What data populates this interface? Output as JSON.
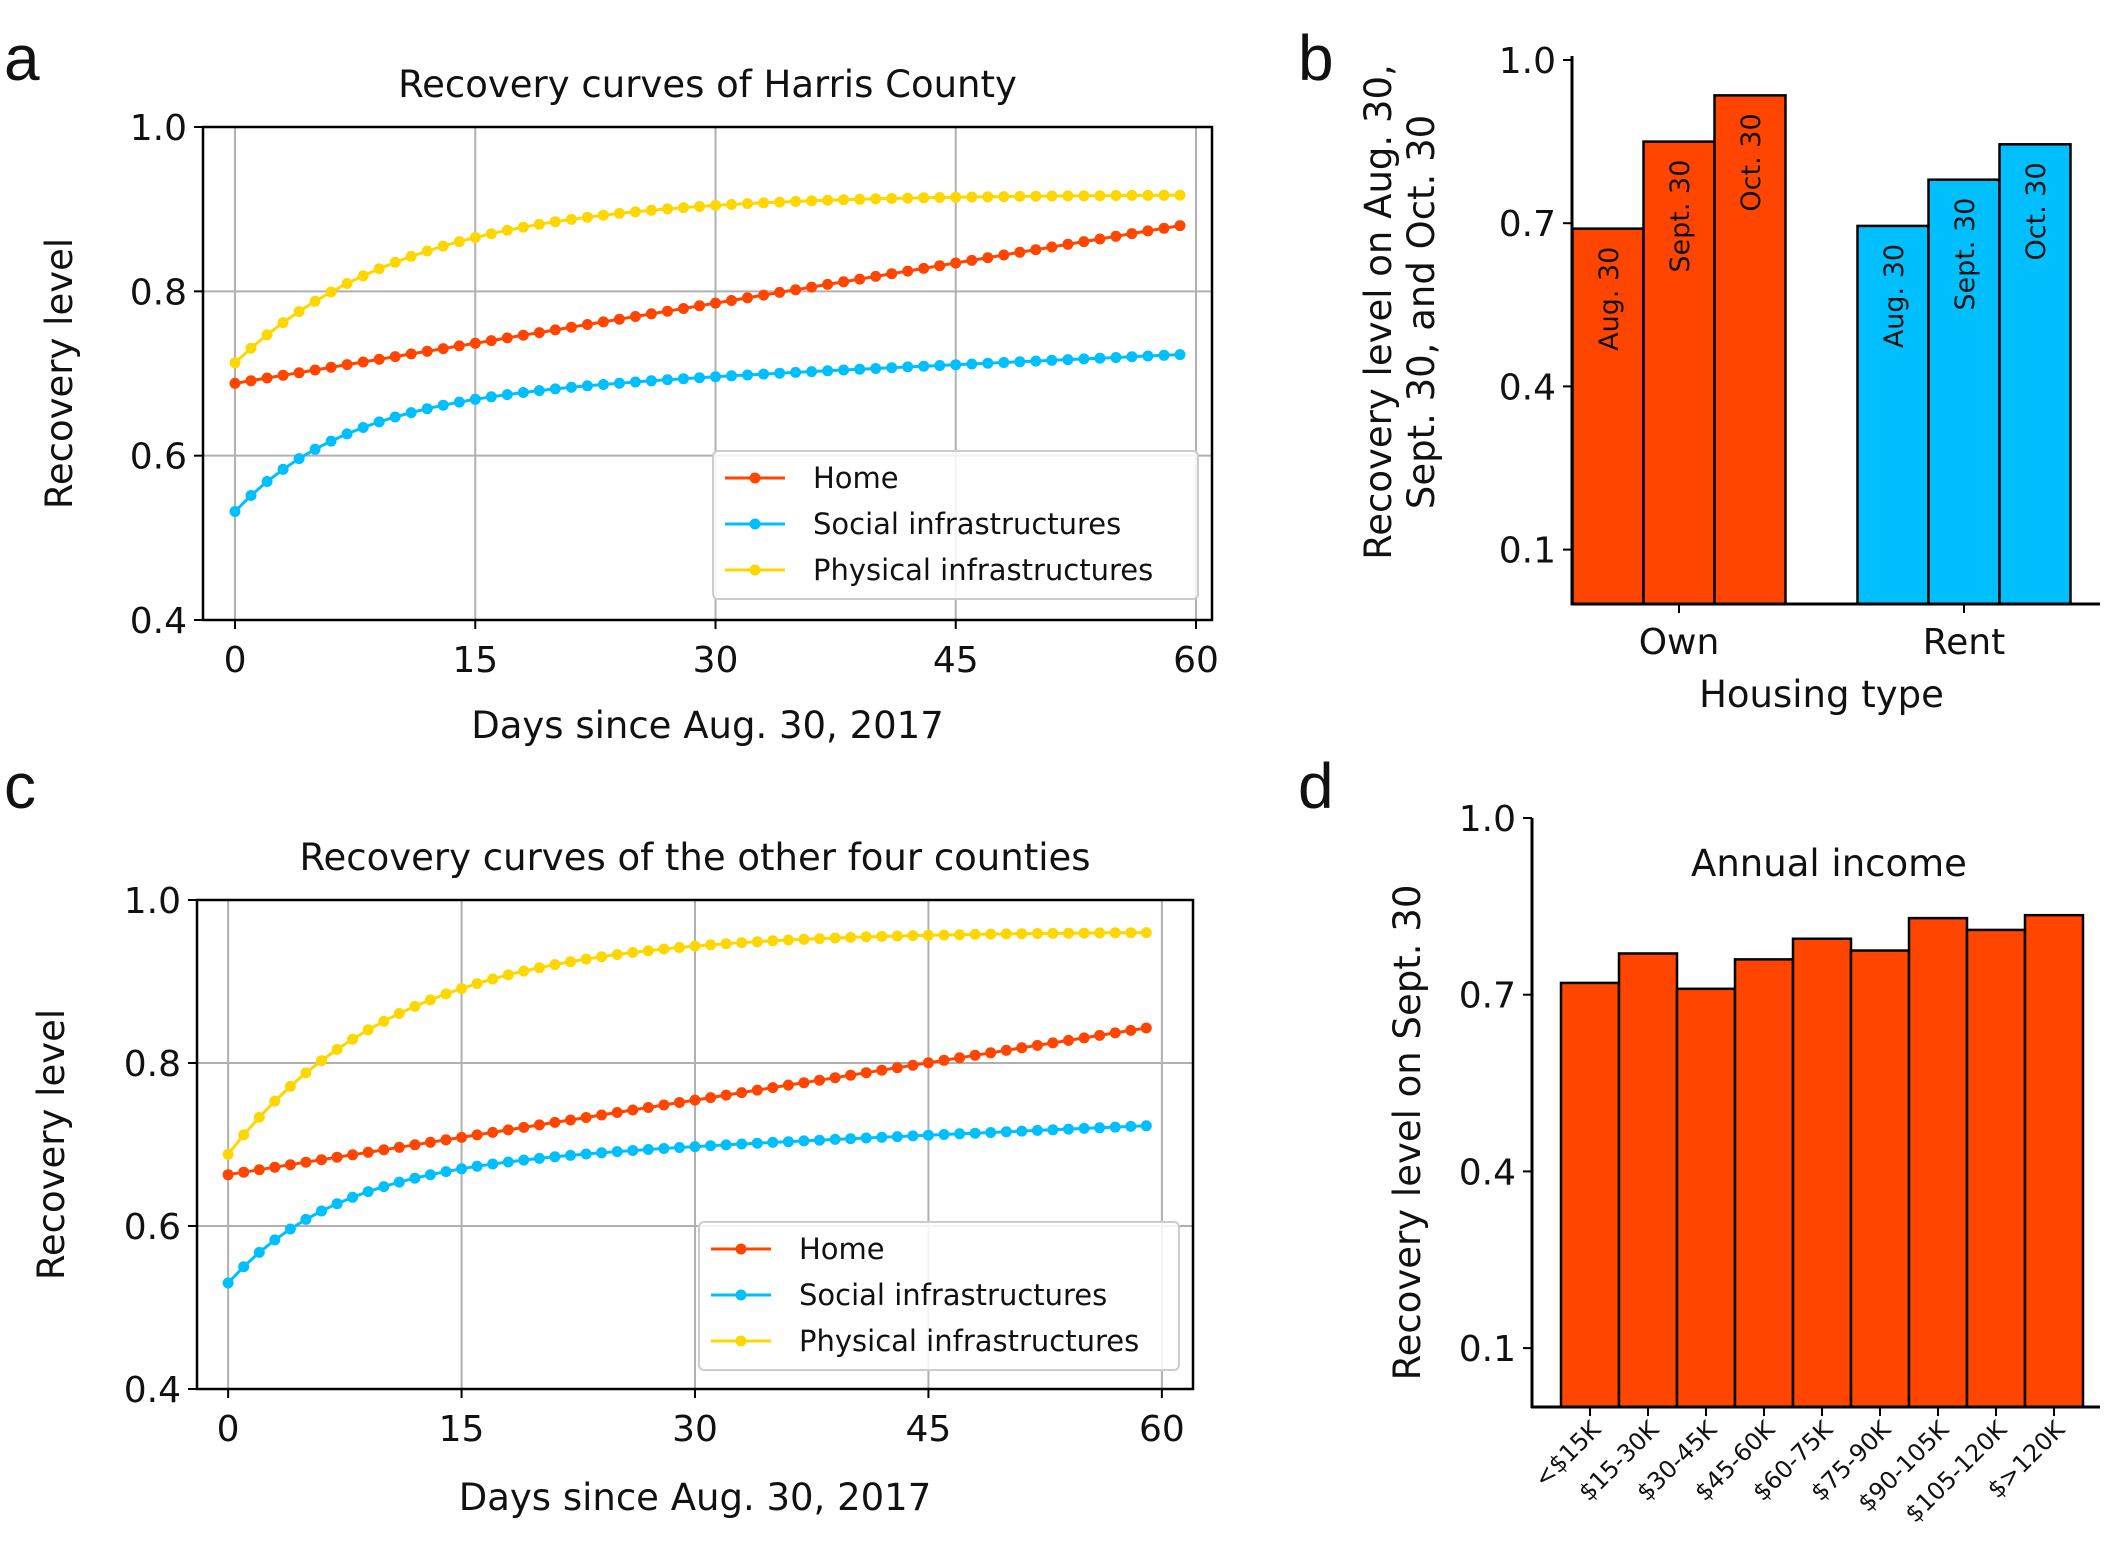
{
  "panels": {
    "a": {
      "letter": "a"
    },
    "b": {
      "letter": "b"
    },
    "c": {
      "letter": "c"
    },
    "d": {
      "letter": "d"
    }
  },
  "colors": {
    "home": "#ff4500",
    "social": "#00bfff",
    "physical": "#ffd700",
    "grid": "#b0b0b0",
    "edge": "#000000"
  },
  "chart_data": [
    {
      "id": "a",
      "type": "line",
      "title": "Recovery curves of Harris County",
      "xlabel": "Days since Aug. 30, 2017",
      "ylabel": "Recovery level",
      "xlim": [
        -2,
        61
      ],
      "ylim": [
        0.4,
        1.0
      ],
      "xticks": [
        0,
        15,
        30,
        45,
        60
      ],
      "yticks": [
        0.4,
        0.6,
        0.8,
        1.0
      ],
      "x": {
        "start": 0,
        "end": 59,
        "step": 1
      },
      "grid": true,
      "legend_position": "bottom-right",
      "series": [
        {
          "name": "Home",
          "color_key": "home",
          "model": "linear",
          "start": 0.688,
          "end": 0.88
        },
        {
          "name": "Social infrastructures",
          "color_key": "social",
          "model": "exp_linear",
          "start": 0.532,
          "end": 0.723,
          "amp": 0.14,
          "tau": 7.0
        },
        {
          "name": "Physical infrastructures",
          "color_key": "physical",
          "model": "exp",
          "start": 0.713,
          "end": 0.917,
          "tau": 11.0
        }
      ]
    },
    {
      "id": "b",
      "type": "bar",
      "xlabel": "Housing type",
      "ylabel": "Recovery level on Aug. 30,\nSept. 30, and Oct. 30",
      "ylim": [
        0.0,
        1.0
      ],
      "yticks": [
        0.1,
        0.4,
        0.7,
        1.0
      ],
      "categories": [
        "Own",
        "Rent"
      ],
      "series": [
        {
          "name": "Aug. 30",
          "values": [
            0.69,
            0.695
          ]
        },
        {
          "name": "Sept. 30",
          "values": [
            0.85,
            0.78
          ]
        },
        {
          "name": "Oct. 30",
          "values": [
            0.935,
            0.845
          ]
        }
      ],
      "category_colors": [
        "home",
        "social"
      ]
    },
    {
      "id": "c",
      "type": "line",
      "title": "Recovery curves of the other four counties",
      "xlabel": "Days since Aug. 30, 2017",
      "ylabel": "Recovery level",
      "xlim": [
        -2,
        62
      ],
      "ylim": [
        0.4,
        1.0
      ],
      "xticks": [
        0,
        15,
        30,
        45,
        60
      ],
      "yticks": [
        0.4,
        0.6,
        0.8,
        1.0
      ],
      "x": {
        "start": 0,
        "end": 59,
        "step": 1
      },
      "grid": true,
      "legend_position": "bottom-right",
      "series": [
        {
          "name": "Home",
          "color_key": "home",
          "model": "linear",
          "start": 0.663,
          "end": 0.843
        },
        {
          "name": "Social infrastructures",
          "color_key": "social",
          "model": "exp_linear",
          "start": 0.53,
          "end": 0.723,
          "amp": 0.145,
          "tau": 7.0
        },
        {
          "name": "Physical infrastructures",
          "color_key": "physical",
          "model": "exp",
          "start": 0.688,
          "end": 0.96,
          "tau": 11.0
        }
      ]
    },
    {
      "id": "d",
      "type": "bar",
      "title": "Annual income",
      "ylabel": "Recovery level on Sept. 30",
      "ylim": [
        0.0,
        1.0
      ],
      "yticks": [
        0.1,
        0.4,
        0.7,
        1.0
      ],
      "categories": [
        "<$15K",
        "$15-30K",
        "$30-45K",
        "$45-60K",
        "$60-75K",
        "$75-90K",
        "$90-105K",
        "$105-120K",
        "$>120K"
      ],
      "values": [
        0.72,
        0.77,
        0.71,
        0.76,
        0.795,
        0.775,
        0.83,
        0.81,
        0.835
      ],
      "color_key": "home"
    }
  ]
}
